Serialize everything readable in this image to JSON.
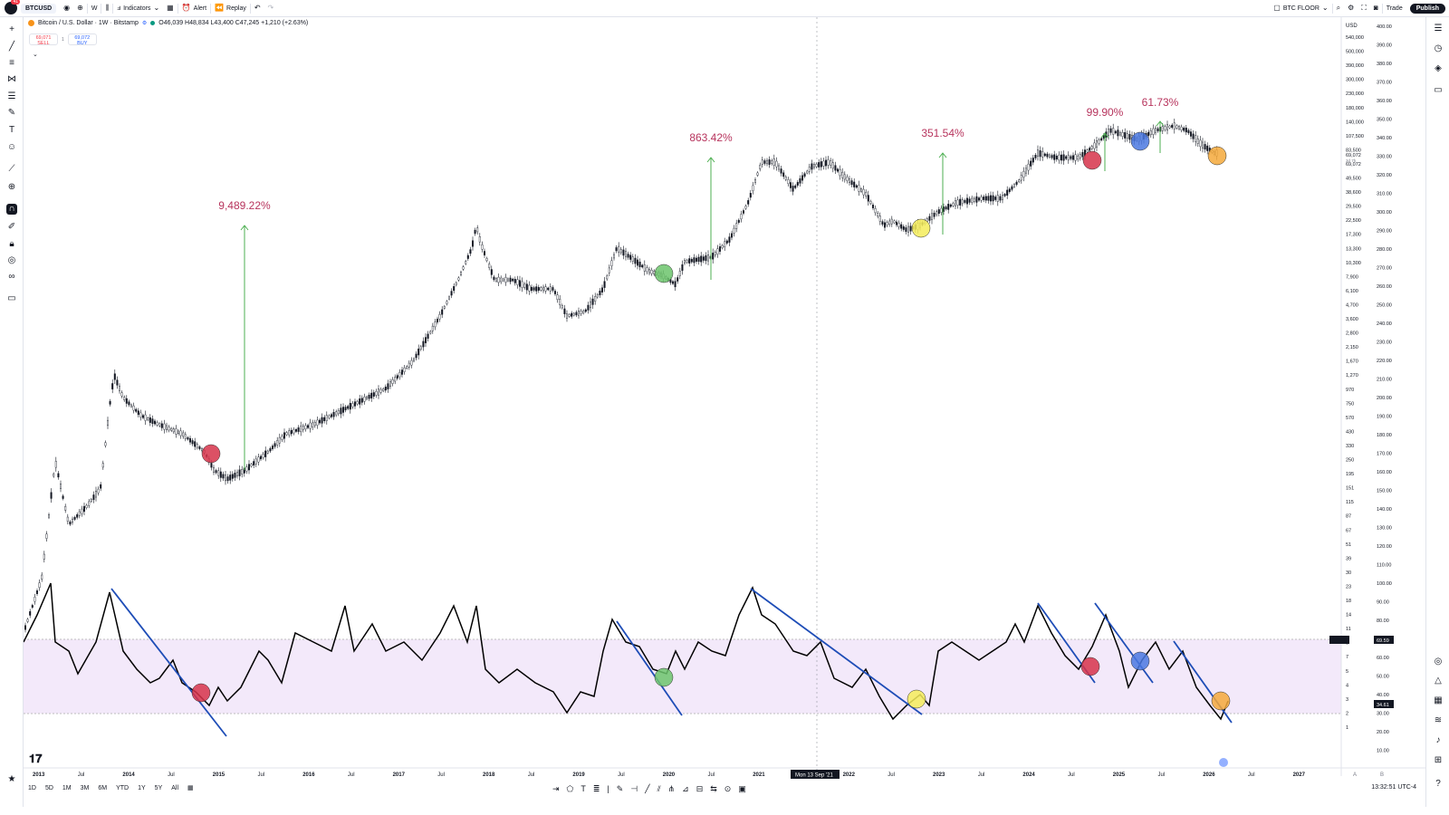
{
  "topbar": {
    "notif_count": "41",
    "symbol": "BTCUSD",
    "interval": "W",
    "indicators": "Indicators",
    "alert": "Alert",
    "replay": "Replay",
    "layout_name": "BTC FLOOR",
    "trade": "Trade",
    "publish": "Publish"
  },
  "legend": {
    "title": "Bitcoin / U.S. Dollar · 1W · Bitstamp",
    "ohlc": "O46,039 H48,834 L43,400 C47,245 +1,210 (+2.63%)",
    "sell_price": "69,071",
    "sell_label": "SELL",
    "buy_price": "69,072",
    "buy_label": "BUY",
    "spread": "1"
  },
  "price_scale": {
    "currency": "USD",
    "labels": [
      "540,000",
      "500,000",
      "390,000",
      "300,000",
      "230,000",
      "180,000",
      "140,000",
      "107,500",
      "83,500",
      "69,072",
      "49,500",
      "38,600",
      "29,500",
      "22,500",
      "17,300",
      "13,300",
      "10,300",
      "7,900",
      "6,100",
      "4,700",
      "3,600",
      "2,800",
      "2,150",
      "1,670",
      "1,270",
      "970",
      "750",
      "570",
      "430",
      "330",
      "250",
      "195",
      "151",
      "115",
      "87",
      "67",
      "51",
      "39",
      "30",
      "23",
      "18",
      "14",
      "11",
      "9",
      "7",
      "5",
      "4",
      "3",
      "2",
      "1"
    ],
    "current_price": "69,072",
    "current_sub": "3d 7h"
  },
  "osc_scale": {
    "labels": [
      "400.00",
      "390.00",
      "380.00",
      "370.00",
      "360.00",
      "350.00",
      "340.00",
      "330.00",
      "320.00",
      "310.00",
      "300.00",
      "290.00",
      "280.00",
      "270.00",
      "260.00",
      "250.00",
      "240.00",
      "230.00",
      "220.00",
      "210.00",
      "200.00",
      "190.00",
      "180.00",
      "170.00",
      "160.00",
      "150.00",
      "140.00",
      "130.00",
      "120.00",
      "110.00",
      "100.00",
      "90.00",
      "80.00",
      "70.00",
      "60.00",
      "50.00",
      "40.00",
      "30.00",
      "20.00",
      "10.00"
    ],
    "marker_upper": "69.59",
    "marker_lower": "34.61"
  },
  "time_axis": {
    "labels": [
      "2013",
      "Jul",
      "2014",
      "Jul",
      "2015",
      "Jul",
      "2016",
      "Jul",
      "2017",
      "Jul",
      "2018",
      "Jul",
      "2019",
      "Jul",
      "2020",
      "Jul",
      "2021",
      "2022",
      "Jul",
      "2023",
      "Jul",
      "2024",
      "Jul",
      "2025",
      "Jul",
      "2026",
      "Jul",
      "2027",
      "Jul"
    ],
    "crosshair_label": "Mon 13 Sep '21"
  },
  "annotations": [
    {
      "text": "9,489.22%"
    },
    {
      "text": "863.42%"
    },
    {
      "text": "351.54%"
    },
    {
      "text": "99.90%"
    },
    {
      "text": "61.73%"
    }
  ],
  "colors": {
    "annotation_text": "#b7345d",
    "green_arrow": "#4caf50",
    "trendline": "#1e4db7",
    "circle_red": "#d6334a",
    "circle_green": "#6cc46c",
    "circle_yellow": "#f5ec5a",
    "circle_blue": "#4a78e0",
    "circle_orange": "#f5a93b",
    "band": "#f3e9fa"
  },
  "bottom": {
    "ranges": [
      "1D",
      "5D",
      "1M",
      "3M",
      "6M",
      "YTD",
      "1Y",
      "5Y",
      "All"
    ],
    "clock": "13:32:51 UTC-4"
  },
  "icons": {
    "left_tools": [
      "crosshair-icon",
      "trendline-icon",
      "fib-icon",
      "pattern-icon",
      "projection-icon",
      "brush-icon",
      "text-icon",
      "emoji-icon",
      "ruler-icon",
      "zoom-in-icon",
      "magnet-icon",
      "lock-drawings-icon",
      "lock-icon",
      "eye-icon",
      "link-icon",
      "trash-icon"
    ],
    "right_tools": [
      "watchlist-icon",
      "clock-icon",
      "layers-icon",
      "chat-icon"
    ]
  }
}
